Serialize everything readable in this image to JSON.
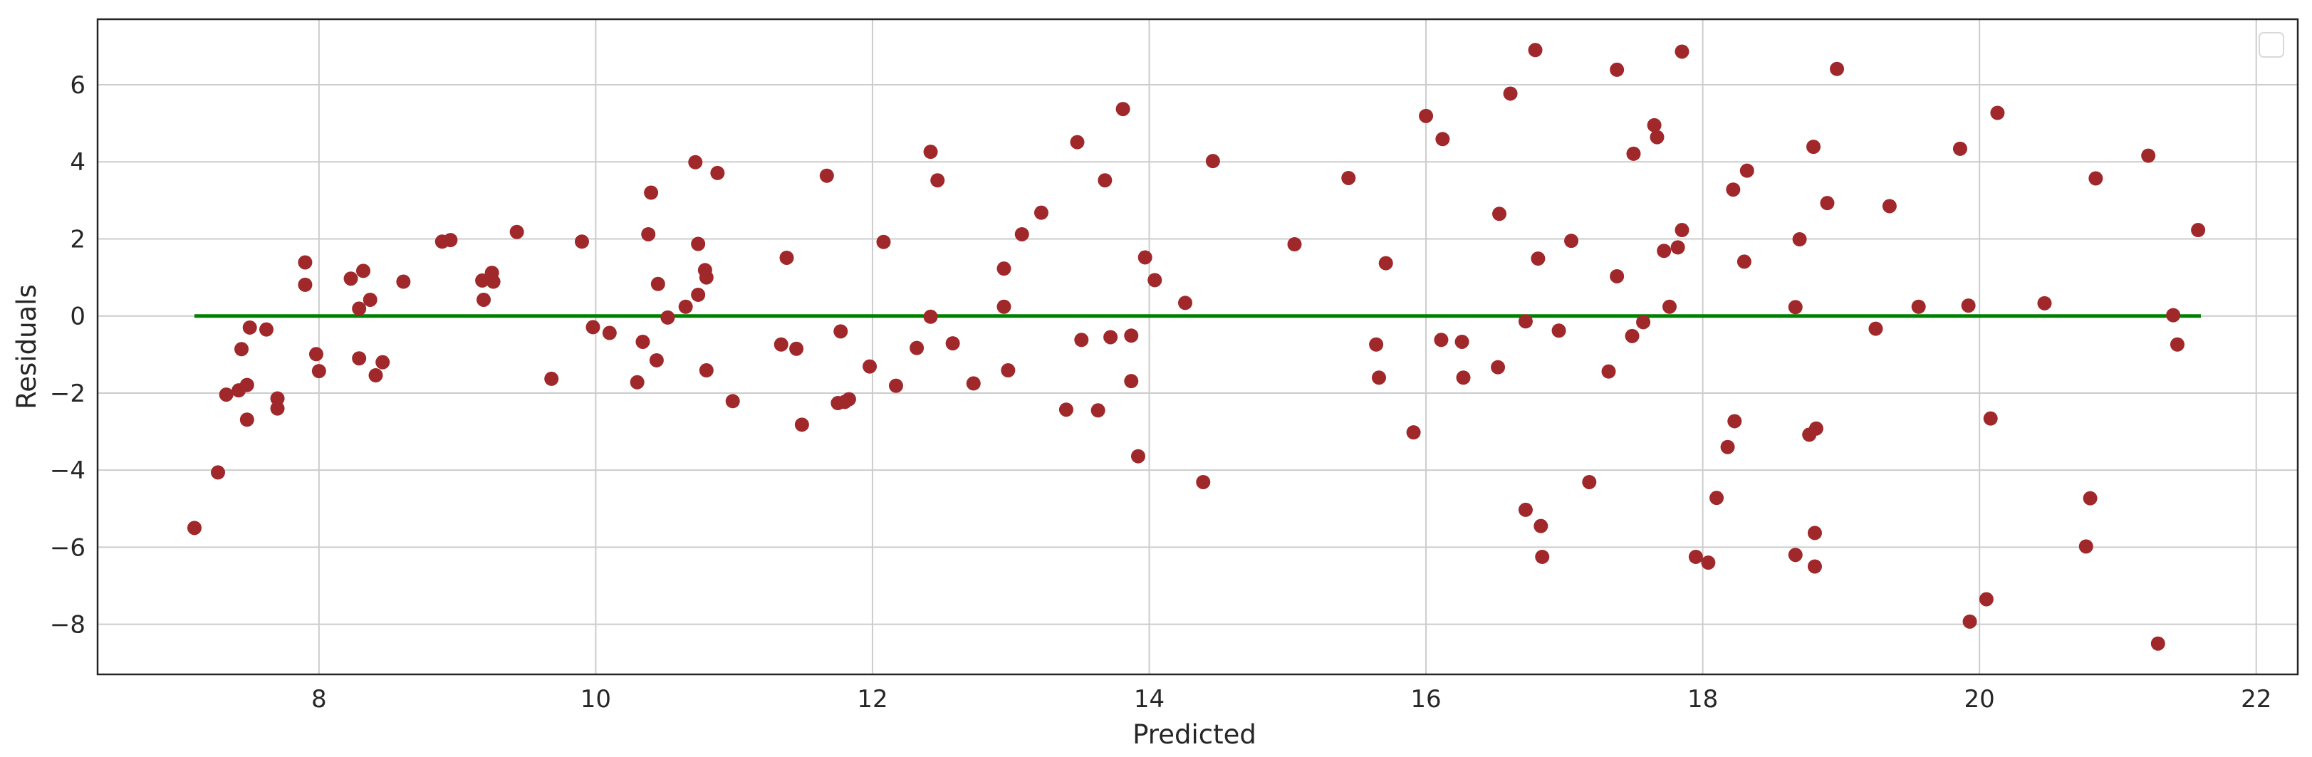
{
  "chart_data": {
    "type": "scatter",
    "title": "",
    "xlabel": "Predicted",
    "ylabel": "Residuals",
    "xlim": [
      6.4,
      22.3
    ],
    "ylim": [
      -9.3,
      7.7
    ],
    "x_ticks": [
      8,
      10,
      12,
      14,
      16,
      18,
      20,
      22
    ],
    "y_ticks": [
      6,
      4,
      2,
      0,
      -2,
      -4,
      -6,
      -8
    ],
    "x_tick_labels": [
      "8",
      "10",
      "12",
      "14",
      "16",
      "18",
      "20",
      "22"
    ],
    "y_tick_labels": [
      "6",
      "4",
      "2",
      "0",
      "−2",
      "−4",
      "−6",
      "−8"
    ],
    "grid": true,
    "legend": "top-right (empty)",
    "colors": {
      "points": "#a0282a",
      "reference_line": "#008000",
      "grid": "#cccccc",
      "frame": "#262626"
    },
    "reference_line": {
      "y": 0,
      "x": [
        7.1,
        21.6
      ]
    },
    "points": [
      [
        7.1,
        -5.5
      ],
      [
        7.27,
        -4.06
      ],
      [
        7.33,
        -2.04
      ],
      [
        7.42,
        -1.93
      ],
      [
        7.44,
        -0.86
      ],
      [
        7.48,
        -1.79
      ],
      [
        7.48,
        -2.69
      ],
      [
        7.5,
        -0.3
      ],
      [
        7.62,
        -0.35
      ],
      [
        7.7,
        -2.14
      ],
      [
        7.7,
        -2.4
      ],
      [
        7.9,
        1.39
      ],
      [
        7.9,
        0.81
      ],
      [
        7.98,
        -0.99
      ],
      [
        8.0,
        -1.43
      ],
      [
        8.23,
        0.97
      ],
      [
        8.29,
        0.19
      ],
      [
        8.29,
        -1.1
      ],
      [
        8.32,
        1.17
      ],
      [
        8.37,
        0.42
      ],
      [
        8.41,
        -1.54
      ],
      [
        8.46,
        -1.2
      ],
      [
        8.61,
        0.89
      ],
      [
        8.89,
        1.93
      ],
      [
        8.95,
        1.97
      ],
      [
        9.18,
        0.92
      ],
      [
        9.19,
        0.42
      ],
      [
        9.25,
        1.12
      ],
      [
        9.26,
        0.89
      ],
      [
        9.43,
        2.18
      ],
      [
        9.68,
        -1.63
      ],
      [
        9.9,
        1.93
      ],
      [
        9.98,
        -0.29
      ],
      [
        10.1,
        -0.44
      ],
      [
        10.3,
        -1.72
      ],
      [
        10.34,
        -0.67
      ],
      [
        10.38,
        2.12
      ],
      [
        10.4,
        3.2
      ],
      [
        10.44,
        -1.15
      ],
      [
        10.45,
        0.83
      ],
      [
        10.52,
        -0.04
      ],
      [
        10.65,
        0.24
      ],
      [
        10.72,
        3.99
      ],
      [
        10.74,
        0.55
      ],
      [
        10.74,
        1.87
      ],
      [
        10.79,
        1.19
      ],
      [
        10.8,
        1.0
      ],
      [
        10.8,
        -1.41
      ],
      [
        10.88,
        3.71
      ],
      [
        10.99,
        -2.21
      ],
      [
        11.34,
        -0.74
      ],
      [
        11.38,
        1.51
      ],
      [
        11.45,
        -0.85
      ],
      [
        11.49,
        -2.82
      ],
      [
        11.67,
        3.64
      ],
      [
        11.75,
        -2.26
      ],
      [
        11.77,
        -0.4
      ],
      [
        11.8,
        -2.23
      ],
      [
        11.83,
        -2.16
      ],
      [
        11.98,
        -1.31
      ],
      [
        12.08,
        1.92
      ],
      [
        12.17,
        -1.81
      ],
      [
        12.32,
        -0.83
      ],
      [
        12.42,
        4.26
      ],
      [
        12.42,
        -0.02
      ],
      [
        12.47,
        3.52
      ],
      [
        12.58,
        -0.71
      ],
      [
        12.73,
        -1.75
      ],
      [
        12.95,
        0.24
      ],
      [
        12.95,
        1.23
      ],
      [
        12.98,
        -1.41
      ],
      [
        13.08,
        2.12
      ],
      [
        13.22,
        2.68
      ],
      [
        13.4,
        -2.43
      ],
      [
        13.48,
        4.51
      ],
      [
        13.51,
        -0.62
      ],
      [
        13.63,
        -2.45
      ],
      [
        13.68,
        3.52
      ],
      [
        13.72,
        -0.55
      ],
      [
        13.81,
        5.37
      ],
      [
        13.87,
        -0.51
      ],
      [
        13.87,
        -1.69
      ],
      [
        13.92,
        -3.64
      ],
      [
        13.97,
        1.52
      ],
      [
        14.04,
        0.93
      ],
      [
        14.26,
        0.34
      ],
      [
        14.39,
        -4.31
      ],
      [
        14.46,
        4.02
      ],
      [
        15.05,
        1.86
      ],
      [
        15.44,
        3.58
      ],
      [
        15.64,
        -0.74
      ],
      [
        15.66,
        -1.6
      ],
      [
        15.71,
        1.37
      ],
      [
        15.91,
        -3.02
      ],
      [
        16.0,
        5.19
      ],
      [
        16.11,
        -0.62
      ],
      [
        16.12,
        4.59
      ],
      [
        16.26,
        -0.67
      ],
      [
        16.27,
        -1.6
      ],
      [
        16.52,
        -1.33
      ],
      [
        16.53,
        2.65
      ],
      [
        16.61,
        5.77
      ],
      [
        16.72,
        -0.14
      ],
      [
        16.72,
        -5.03
      ],
      [
        16.79,
        6.9
      ],
      [
        16.81,
        1.49
      ],
      [
        16.83,
        -5.45
      ],
      [
        16.84,
        -6.25
      ],
      [
        16.96,
        -0.38
      ],
      [
        17.05,
        1.95
      ],
      [
        17.18,
        -4.31
      ],
      [
        17.32,
        -1.44
      ],
      [
        17.38,
        6.39
      ],
      [
        17.38,
        1.03
      ],
      [
        17.49,
        -0.52
      ],
      [
        17.5,
        4.21
      ],
      [
        17.57,
        -0.16
      ],
      [
        17.65,
        4.95
      ],
      [
        17.67,
        4.64
      ],
      [
        17.72,
        1.69
      ],
      [
        17.76,
        0.24
      ],
      [
        17.82,
        1.78
      ],
      [
        17.85,
        2.23
      ],
      [
        17.85,
        6.86
      ],
      [
        17.95,
        -6.25
      ],
      [
        18.04,
        -6.4
      ],
      [
        18.1,
        -4.72
      ],
      [
        18.18,
        -3.4
      ],
      [
        18.22,
        3.28
      ],
      [
        18.23,
        -2.73
      ],
      [
        18.3,
        1.41
      ],
      [
        18.32,
        3.77
      ],
      [
        18.67,
        0.23
      ],
      [
        18.67,
        -6.2
      ],
      [
        18.7,
        1.99
      ],
      [
        18.77,
        -3.08
      ],
      [
        18.8,
        4.39
      ],
      [
        18.81,
        -6.5
      ],
      [
        18.81,
        -5.63
      ],
      [
        18.82,
        -2.92
      ],
      [
        18.9,
        2.93
      ],
      [
        18.97,
        6.41
      ],
      [
        19.25,
        -0.33
      ],
      [
        19.35,
        2.85
      ],
      [
        19.56,
        0.24
      ],
      [
        19.86,
        4.34
      ],
      [
        19.92,
        0.27
      ],
      [
        19.93,
        -7.93
      ],
      [
        20.05,
        -7.35
      ],
      [
        20.08,
        -2.66
      ],
      [
        20.13,
        5.27
      ],
      [
        20.47,
        0.33
      ],
      [
        20.77,
        -5.98
      ],
      [
        20.8,
        -4.73
      ],
      [
        20.84,
        3.57
      ],
      [
        21.22,
        4.16
      ],
      [
        21.29,
        -8.5
      ],
      [
        21.4,
        0.02
      ],
      [
        21.43,
        -0.74
      ],
      [
        21.58,
        2.23
      ]
    ]
  }
}
